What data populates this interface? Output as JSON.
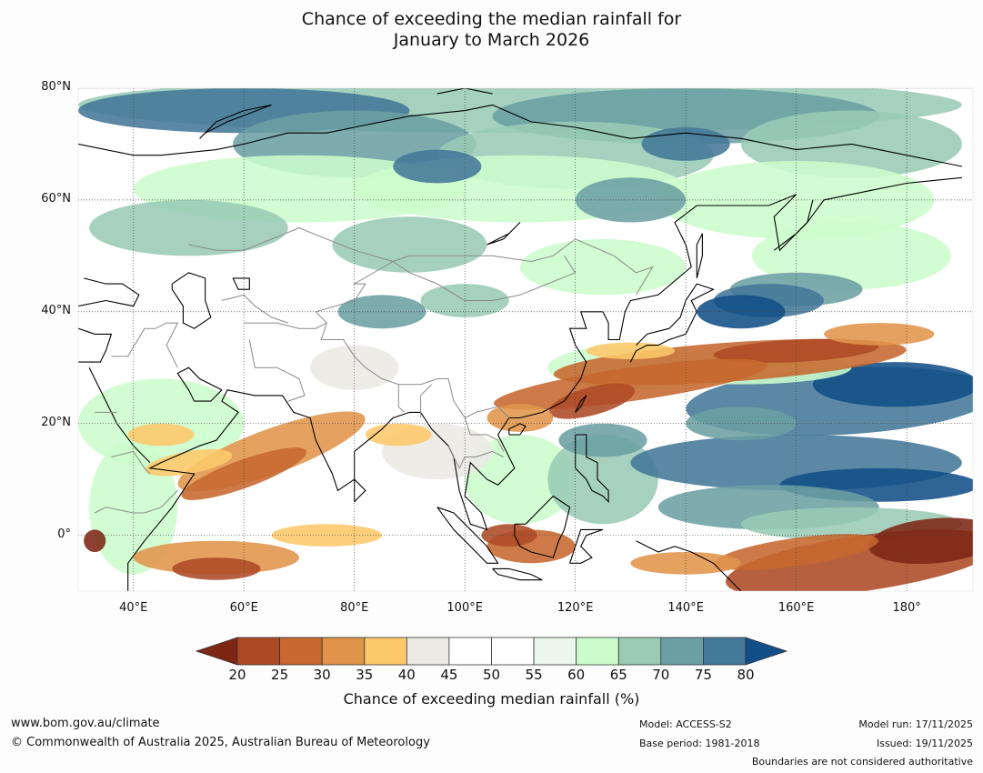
{
  "title_line1": "Chance of exceeding the median rainfall for",
  "title_line2": "January to March 2026",
  "map": {
    "lat_labels": [
      "80°N",
      "60°N",
      "40°N",
      "20°N",
      "0°"
    ],
    "lon_labels": [
      "40°E",
      "60°E",
      "80°E",
      "100°E",
      "120°E",
      "140°E",
      "160°E",
      "180°"
    ],
    "extent": {
      "lon_min": 30,
      "lon_max": 192,
      "lat_min": -10,
      "lat_max": 80
    }
  },
  "colorbar": {
    "ticks": [
      "20",
      "25",
      "30",
      "35",
      "40",
      "45",
      "50",
      "55",
      "60",
      "65",
      "70",
      "75",
      "80"
    ],
    "colors": [
      "#7d2614",
      "#ad4a26",
      "#c6682f",
      "#e0944a",
      "#fdc86a",
      "#ebe9e4",
      "#ffffff",
      "#ffffff",
      "#eaf7ea",
      "#ccfccc",
      "#99cbb5",
      "#6b9fa3",
      "#437899",
      "#124e88"
    ],
    "label": "Chance of exceeding median rainfall (%)"
  },
  "footer": {
    "website": "www.bom.gov.au/climate",
    "copyright": "© Commonwealth of Australia 2025, Australian Bureau of Meteorology",
    "model": "Model: ACCESS-S2",
    "base_period": "Base period: 1981-2018",
    "model_run": "Model run: 17/11/2025",
    "issued": "Issued: 19/11/2025",
    "disclaimer": "Boundaries are not considered authoritative"
  }
}
